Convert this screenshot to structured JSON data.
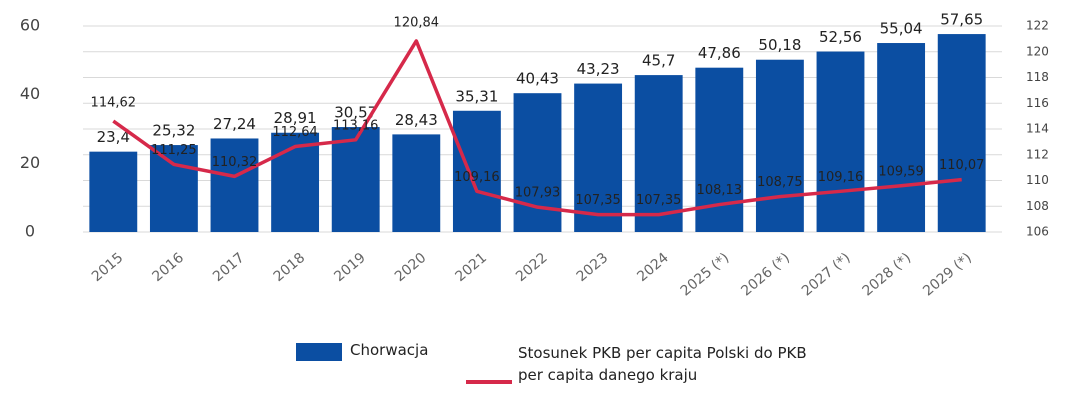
{
  "chart_data": {
    "type": "bar_line",
    "categories": [
      "2015",
      "2016",
      "2017",
      "2018",
      "2019",
      "2020",
      "2021",
      "2022",
      "2023",
      "2024",
      "2025 (*)",
      "2026 (*)",
      "2027 (*)",
      "2028 (*)",
      "2029 (*)"
    ],
    "series": [
      {
        "name": "Chorwacja",
        "color": "#0b4ea2",
        "type": "bar",
        "values": [
          23.4,
          25.32,
          27.24,
          28.91,
          30.57,
          28.43,
          35.31,
          40.43,
          43.23,
          45.7,
          47.86,
          50.18,
          52.56,
          55.04,
          57.65
        ],
        "value_labels": [
          "23,4",
          "25,32",
          "27,24",
          "28,91",
          "30,57",
          "28,43",
          "35,31",
          "40,43",
          "43,23",
          "45,7",
          "47,86",
          "50,18",
          "52,56",
          "55,04",
          "57,65"
        ]
      },
      {
        "name": "Stosunek PKB per capita Polski do PKB per capita danego kraju",
        "color": "#d6294a",
        "type": "line",
        "axis": "y2",
        "values": [
          114.62,
          111.25,
          110.32,
          112.64,
          113.16,
          120.84,
          109.16,
          107.93,
          107.35,
          107.35,
          108.13,
          108.75,
          109.16,
          109.59,
          110.07
        ],
        "value_labels": [
          "114,62",
          "111,25",
          "110,32",
          "112,64",
          "113,16",
          "120,84",
          "109,16",
          "107,93",
          "107,35",
          "107,35",
          "108,13",
          "108,75",
          "109,16",
          "109,59",
          "110,07"
        ]
      }
    ],
    "ylim": [
      0,
      60
    ],
    "yticks": [
      0,
      20,
      40,
      60
    ],
    "y2lim": [
      106,
      122
    ],
    "y2ticks": [
      106,
      108,
      110,
      112,
      114,
      116,
      118,
      120,
      122
    ],
    "grid": true
  }
}
